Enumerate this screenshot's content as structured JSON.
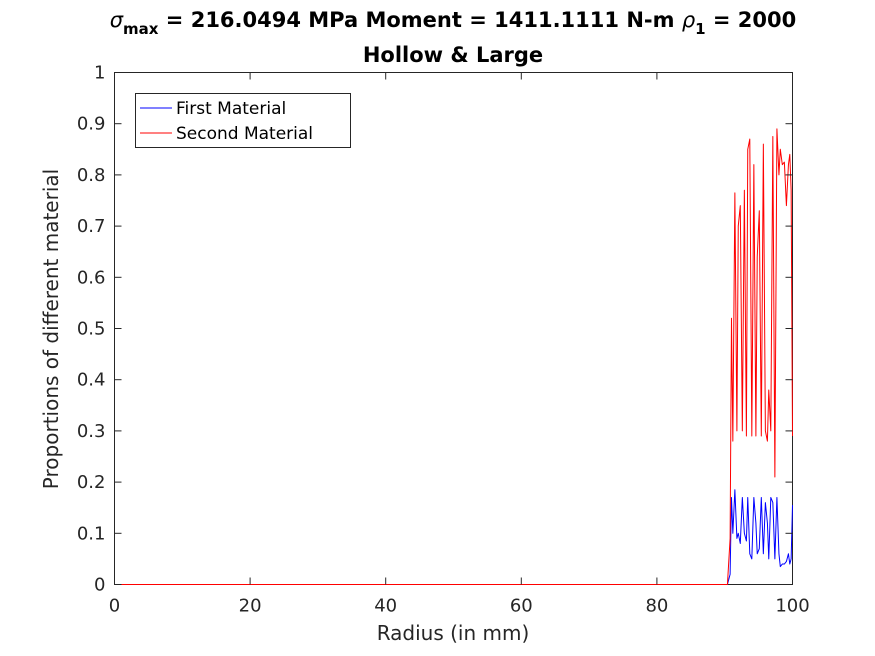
{
  "chart_data": {
    "type": "line",
    "title": {
      "line1": {
        "sigma_symbol": "σ",
        "sigma_subscript": "max",
        "part_a": " = 216.0494 MPa Moment = 1411.1111 N-m  ",
        "rho_symbol": "ρ",
        "rho_subscript": "1",
        "part_b": " = 2000"
      },
      "line2": "Hollow & Large"
    },
    "xlabel": "Radius (in mm)",
    "ylabel": "Proportions of different material",
    "xlim": [
      0,
      100
    ],
    "ylim": [
      0,
      1
    ],
    "xticks": [
      0,
      20,
      40,
      60,
      80,
      100
    ],
    "yticks": [
      0,
      0.1,
      0.2,
      0.3,
      0.4,
      0.5,
      0.6,
      0.7,
      0.8,
      0.9,
      1
    ],
    "grid": false,
    "legend_position": "top-left",
    "series": [
      {
        "name": "First Material",
        "color": "#0000ff",
        "x": [
          0,
          90.4,
          90.8,
          91.0,
          91.2,
          91.5,
          91.8,
          92.0,
          92.3,
          92.6,
          92.9,
          93.2,
          93.4,
          93.7,
          94.0,
          94.3,
          94.6,
          94.8,
          95.1,
          95.4,
          95.7,
          96.0,
          96.3,
          96.5,
          96.8,
          97.1,
          97.4,
          97.7,
          98.0,
          98.2,
          98.5,
          98.8,
          99.1,
          99.4,
          99.6,
          99.8,
          100.0
        ],
        "y": [
          0,
          0,
          0.02,
          0.17,
          0.1,
          0.185,
          0.09,
          0.1,
          0.08,
          0.17,
          0.1,
          0.085,
          0.17,
          0.06,
          0.05,
          0.17,
          0.12,
          0.06,
          0.07,
          0.17,
          0.06,
          0.16,
          0.12,
          0.05,
          0.17,
          0.16,
          0.05,
          0.17,
          0.06,
          0.035,
          0.04,
          0.04,
          0.045,
          0.06,
          0.04,
          0.05,
          0.155
        ]
      },
      {
        "name": "Second Material",
        "color": "#ff0000",
        "x": [
          0,
          90.4,
          90.8,
          91.0,
          91.2,
          91.5,
          91.8,
          92.0,
          92.3,
          92.6,
          92.9,
          93.2,
          93.4,
          93.7,
          94.0,
          94.3,
          94.6,
          94.8,
          95.1,
          95.4,
          95.7,
          96.0,
          96.3,
          96.5,
          96.8,
          97.1,
          97.4,
          97.7,
          98.0,
          98.2,
          98.5,
          98.8,
          99.1,
          99.4,
          99.6,
          99.8,
          100.0
        ],
        "y": [
          0,
          0,
          0.09,
          0.52,
          0.28,
          0.765,
          0.3,
          0.7,
          0.74,
          0.3,
          0.77,
          0.29,
          0.85,
          0.87,
          0.29,
          0.82,
          0.29,
          0.64,
          0.73,
          0.29,
          0.86,
          0.3,
          0.28,
          0.38,
          0.3,
          0.875,
          0.21,
          0.89,
          0.8,
          0.85,
          0.82,
          0.825,
          0.74,
          0.82,
          0.84,
          0.77,
          0.29
        ]
      }
    ]
  }
}
